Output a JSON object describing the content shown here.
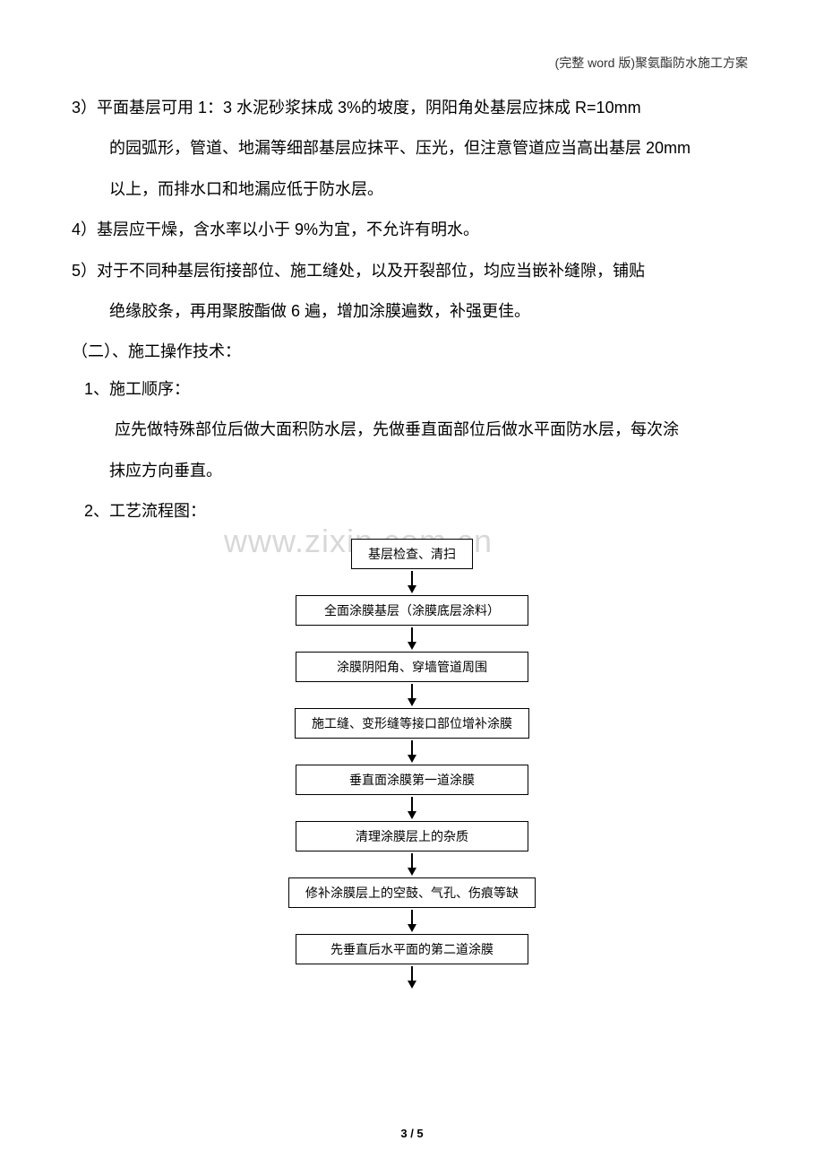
{
  "header": {
    "text": "(完整 word 版)聚氨酯防水施工方案"
  },
  "paragraphs": {
    "p3_line1": "3）平面基层可用 1：3 水泥砂浆抹成 3%的坡度，阴阳角处基层应抹成 R=10mm",
    "p3_line2": "的园弧形，管道、地漏等细部基层应抹平、压光，但注意管道应当高出基层 20mm",
    "p3_line3": "以上，而排水口和地漏应低于防水层。",
    "p4": "4）基层应干燥，含水率以小于 9%为宜，不允许有明水。",
    "p5_line1": "5）对于不同种基层衔接部位、施工缝处，以及开裂部位，均应当嵌补缝隙，铺贴",
    "p5_line2": "绝缘胶条，再用聚胺酯做 6 遍，增加涂膜遍数，补强更佳。",
    "section2_title": "（二）、施工操作技术：",
    "sub1_title": "1、施工顺序：",
    "sub1_line1": "应先做特殊部位后做大面积防水层，先做垂直面部位后做水平面防水层，每次涂",
    "sub1_line2": "抹应方向垂直。",
    "sub2_title": "2、工艺流程图："
  },
  "watermark": {
    "text": "www.zixin.com.cn"
  },
  "flowchart": {
    "nodes": [
      {
        "label": "基层检查、清扫",
        "wide": false
      },
      {
        "label": "全面涂膜基层（涂膜底层涂料）",
        "wide": true
      },
      {
        "label": "涂膜阴阳角、穿墙管道周围",
        "wide": true
      },
      {
        "label": "施工缝、变形缝等接口部位增补涂膜",
        "wide": true
      },
      {
        "label": "垂直面涂膜第一道涂膜",
        "wide": true
      },
      {
        "label": "清理涂膜层上的杂质",
        "wide": true
      },
      {
        "label": "修补涂膜层上的空鼓、气孔、伤痕等缺",
        "wide": true
      },
      {
        "label": "先垂直后水平面的第二道涂膜",
        "wide": true
      }
    ]
  },
  "footer": {
    "current_page": "3",
    "total_pages": "5",
    "separator": " / "
  }
}
